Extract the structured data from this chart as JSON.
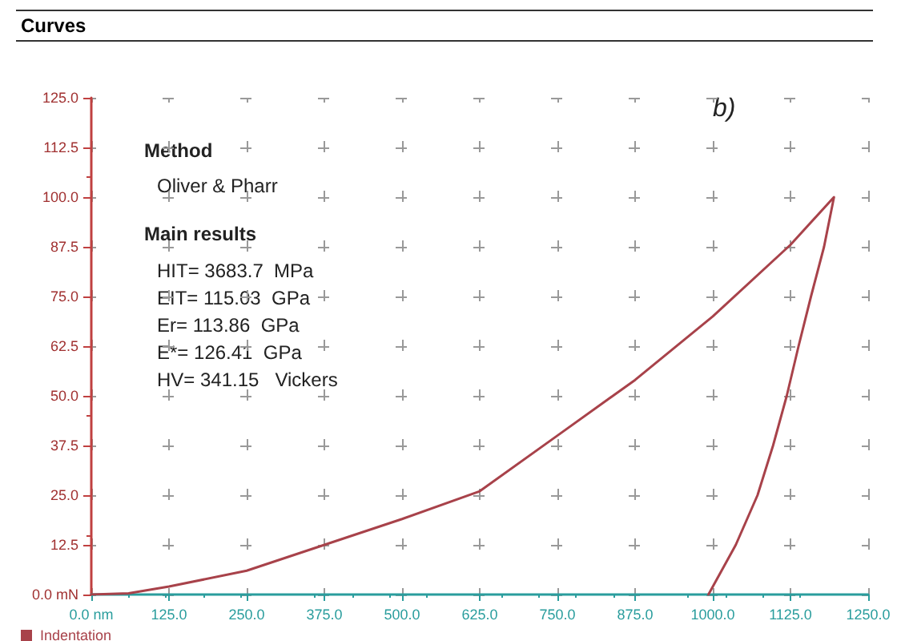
{
  "chart_data": {
    "type": "line",
    "title": "Curves",
    "annotations": [
      "Method",
      "Oliver & Pharr",
      "Main results",
      "HIT= 3683.7  MPa",
      "EIT= 115.03  GPa",
      "Er= 113.86  GPa",
      "E*= 126.41  GPa",
      "HV= 341.15   Vickers",
      "b)"
    ],
    "series": [
      {
        "name": "Indentation",
        "color": "#a8424a",
        "x": [
          0,
          60,
          125,
          250,
          375,
          500,
          625,
          750,
          875,
          1000,
          1125,
          1195,
          1179,
          1158,
          1138,
          1119,
          1097,
          1072,
          1037,
          993
        ],
        "values": [
          0,
          0.3,
          2,
          6,
          12.5,
          19,
          26,
          40,
          54,
          70,
          88,
          100,
          87.5,
          75,
          62.5,
          50,
          37.5,
          25,
          12.5,
          0
        ]
      }
    ],
    "xlim": [
      0,
      1250
    ],
    "xticks": [
      {
        "value": 0,
        "label": "0.0 nm"
      },
      {
        "value": 125,
        "label": "125.0"
      },
      {
        "value": 250,
        "label": "250.0"
      },
      {
        "value": 375,
        "label": "375.0"
      },
      {
        "value": 500,
        "label": "500.0"
      },
      {
        "value": 625,
        "label": "625.0"
      },
      {
        "value": 750,
        "label": "750.0"
      },
      {
        "value": 875,
        "label": "875.0"
      },
      {
        "value": 1000,
        "label": "1000.0"
      },
      {
        "value": 1125,
        "label": "1125.0"
      },
      {
        "value": 1250,
        "label": "1250.0"
      }
    ],
    "ylim": [
      0,
      125
    ],
    "yticks": [
      {
        "value": 0,
        "label": "0.0 mN"
      },
      {
        "value": 12.5,
        "label": "12.5"
      },
      {
        "value": 25,
        "label": "25.0"
      },
      {
        "value": 37.5,
        "label": "37.5"
      },
      {
        "value": 50,
        "label": "50.0"
      },
      {
        "value": 62.5,
        "label": "62.5"
      },
      {
        "value": 75,
        "label": "75.0"
      },
      {
        "value": 87.5,
        "label": "87.5"
      },
      {
        "value": 100,
        "label": "100.0"
      },
      {
        "value": 112.5,
        "label": "112.5"
      },
      {
        "value": 125,
        "label": "125.0"
      }
    ],
    "grid": true,
    "legend": "bottom left",
    "marker": "none",
    "line_style": "solid"
  }
}
